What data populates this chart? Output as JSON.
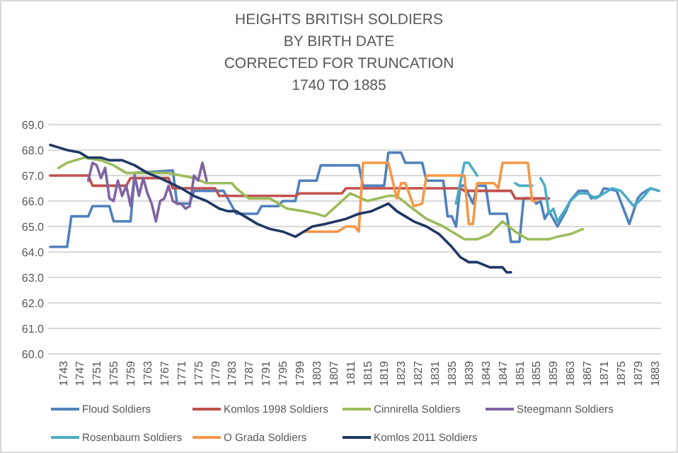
{
  "chart_data": {
    "type": "line",
    "title": "HEIGHTS BRITISH SOLDIERS\nBY BIRTH DATE\nCORRECTED FOR TRUNCATION\n1740 TO 1885",
    "xlim": [
      1739.5,
      1884.5
    ],
    "xticks": [
      1743,
      1747,
      1751,
      1755,
      1759,
      1763,
      1767,
      1771,
      1775,
      1779,
      1783,
      1787,
      1791,
      1795,
      1799,
      1803,
      1807,
      1811,
      1815,
      1819,
      1823,
      1827,
      1831,
      1835,
      1839,
      1843,
      1847,
      1851,
      1855,
      1859,
      1863,
      1867,
      1871,
      1875,
      1879,
      1883
    ],
    "ylim": [
      60,
      69
    ],
    "yticks": [
      {
        "value": 60,
        "label": "60.0"
      },
      {
        "value": 61,
        "label": "61.0"
      },
      {
        "value": 62,
        "label": "62.0"
      },
      {
        "value": 63,
        "label": "63.0"
      },
      {
        "value": 64,
        "label": "64.0"
      },
      {
        "value": 65,
        "label": "65.0"
      },
      {
        "value": 66,
        "label": "66.0"
      },
      {
        "value": 67,
        "label": "67.0"
      },
      {
        "value": 68,
        "label": "68.0"
      },
      {
        "value": 69,
        "label": "69.0"
      }
    ],
    "grid": "y",
    "legend": "bottom",
    "marker": "none",
    "line_style": "solid",
    "series": [
      {
        "name": "Floud Soldiers",
        "color": "#4f81bd",
        "x": [
          1740,
          1744,
          1745,
          1749,
          1750,
          1754,
          1755,
          1759,
          1760,
          1769,
          1770,
          1773,
          1774,
          1779,
          1781,
          1784,
          1789,
          1790,
          1794,
          1795,
          1798,
          1799,
          1803,
          1804,
          1813,
          1814,
          1819,
          1820,
          1823,
          1824,
          1828,
          1829,
          1833,
          1834,
          1835,
          1836,
          1837,
          1838,
          1840,
          1841,
          1843,
          1844,
          1848,
          1849,
          1851,
          1852,
          1854,
          1855,
          1856,
          1857,
          1858,
          1860,
          1862,
          1863,
          1865,
          1867,
          1868,
          1870,
          1871,
          1874,
          1877,
          1879,
          1880,
          1882,
          1884
        ],
        "values": [
          64.2,
          64.2,
          65.4,
          65.4,
          65.8,
          65.8,
          65.2,
          65.2,
          67.1,
          67.2,
          65.9,
          65.9,
          66.4,
          66.4,
          66.4,
          65.5,
          65.5,
          65.8,
          65.8,
          66.0,
          66.0,
          66.8,
          66.8,
          67.4,
          67.4,
          66.6,
          66.6,
          67.9,
          67.9,
          67.5,
          67.5,
          66.8,
          66.8,
          65.4,
          65.4,
          65.0,
          66.6,
          66.6,
          65.9,
          66.6,
          66.6,
          65.5,
          65.5,
          64.4,
          64.4,
          66.1,
          66.1,
          65.9,
          66.0,
          65.3,
          65.6,
          65.0,
          65.6,
          66.0,
          66.4,
          66.4,
          66.1,
          66.2,
          66.5,
          66.4,
          65.1,
          66.1,
          66.3,
          66.5,
          66.4
        ]
      },
      {
        "name": "Komlos 1998 Soldiers",
        "color": "#c0504d",
        "x": [
          1740,
          1749,
          1750,
          1758,
          1759,
          1768,
          1769,
          1779,
          1780,
          1798,
          1799,
          1809,
          1810,
          1837,
          1838,
          1849,
          1850,
          1858
        ],
        "values": [
          67.0,
          67.0,
          66.6,
          66.6,
          66.9,
          66.9,
          66.5,
          66.5,
          66.2,
          66.2,
          66.3,
          66.3,
          66.5,
          66.5,
          66.4,
          66.4,
          66.1,
          66.1
        ]
      },
      {
        "name": "Cinnirella Soldiers",
        "color": "#9bbb59",
        "x": [
          1742,
          1744,
          1746,
          1748,
          1752,
          1755,
          1758,
          1768,
          1771,
          1774,
          1777,
          1783,
          1784,
          1787,
          1792,
          1794,
          1796,
          1800,
          1803,
          1805,
          1807,
          1811,
          1815,
          1820,
          1822,
          1825,
          1829,
          1833,
          1838,
          1841,
          1844,
          1847,
          1850,
          1853,
          1858,
          1860,
          1863,
          1866
        ],
        "values": [
          67.3,
          67.5,
          67.6,
          67.7,
          67.6,
          67.4,
          67.1,
          67.1,
          67.0,
          66.9,
          66.7,
          66.7,
          66.5,
          66.1,
          66.1,
          65.9,
          65.7,
          65.6,
          65.5,
          65.4,
          65.7,
          66.3,
          66.0,
          66.2,
          66.2,
          65.8,
          65.3,
          65.0,
          64.5,
          64.5,
          64.7,
          65.2,
          64.8,
          64.5,
          64.5,
          64.6,
          64.7,
          64.9
        ]
      },
      {
        "name": "Steegmann Soldiers",
        "color": "#8064a2",
        "x": [
          1749,
          1750,
          1751,
          1752,
          1753,
          1754,
          1755,
          1756,
          1757,
          1758,
          1759,
          1760,
          1761,
          1762,
          1763,
          1764,
          1765,
          1766,
          1767,
          1768,
          1769,
          1770,
          1771,
          1772,
          1773,
          1774,
          1775,
          1776,
          1777
        ],
        "values": [
          66.8,
          67.5,
          67.4,
          66.9,
          67.3,
          66.1,
          66.0,
          66.8,
          66.2,
          66.6,
          65.8,
          67.0,
          66.2,
          66.9,
          66.3,
          65.9,
          65.2,
          66.0,
          66.1,
          66.6,
          66.0,
          65.9,
          65.9,
          65.7,
          65.8,
          67.0,
          66.8,
          67.5,
          66.8
        ]
      },
      {
        "name": "Rosenbaum Soldiers",
        "color": "#4bacc6",
        "x": [
          1836,
          1838,
          1839,
          1841,
          1842,
          1850,
          1851,
          1854,
          1855,
          1856,
          1857,
          1858,
          1859,
          1860,
          1862,
          1863,
          1865,
          1867,
          1869,
          1871,
          1873,
          1875,
          1878,
          1880,
          1882,
          1884
        ],
        "values": [
          65.9,
          67.5,
          67.5,
          67.0,
          null,
          66.7,
          66.6,
          66.6,
          null,
          66.9,
          66.6,
          65.5,
          65.7,
          65.2,
          65.7,
          66.0,
          66.3,
          66.3,
          66.1,
          66.3,
          66.5,
          66.4,
          65.8,
          66.1,
          66.5,
          66.4
        ]
      },
      {
        "name": "O Grada Soldiers",
        "color": "#f79646",
        "x": [
          1800,
          1808,
          1810,
          1812,
          1813,
          1814,
          1820,
          1822,
          1823,
          1824,
          1826,
          1828,
          1829,
          1838,
          1839,
          1840,
          1841,
          1845,
          1846,
          1847,
          1853,
          1854,
          1855
        ],
        "values": [
          64.8,
          64.8,
          65.0,
          65.0,
          64.8,
          67.5,
          67.5,
          66.1,
          66.7,
          66.7,
          65.8,
          65.9,
          67.0,
          67.0,
          65.1,
          65.1,
          66.7,
          66.7,
          66.5,
          67.5,
          67.5,
          66.0,
          66.0
        ]
      },
      {
        "name": "Komlos 2011 Soldiers",
        "color": "#1f3864",
        "x": [
          1740,
          1742,
          1744,
          1747,
          1749,
          1752,
          1754,
          1757,
          1760,
          1763,
          1766,
          1771,
          1774,
          1777,
          1780,
          1782,
          1784,
          1786,
          1789,
          1792,
          1795,
          1798,
          1800,
          1802,
          1805,
          1810,
          1813,
          1816,
          1820,
          1822,
          1824,
          1826,
          1829,
          1832,
          1835,
          1837,
          1839,
          1841,
          1844,
          1847,
          1848,
          1849
        ],
        "values": [
          68.2,
          68.1,
          68.0,
          67.9,
          67.7,
          67.7,
          67.6,
          67.6,
          67.4,
          67.1,
          66.9,
          66.5,
          66.2,
          66.0,
          65.7,
          65.6,
          65.6,
          65.4,
          65.1,
          64.9,
          64.8,
          64.6,
          64.8,
          65.0,
          65.1,
          65.3,
          65.5,
          65.6,
          65.9,
          65.6,
          65.4,
          65.2,
          65.0,
          64.7,
          64.2,
          63.8,
          63.6,
          63.6,
          63.4,
          63.4,
          63.2,
          63.2
        ]
      }
    ]
  }
}
